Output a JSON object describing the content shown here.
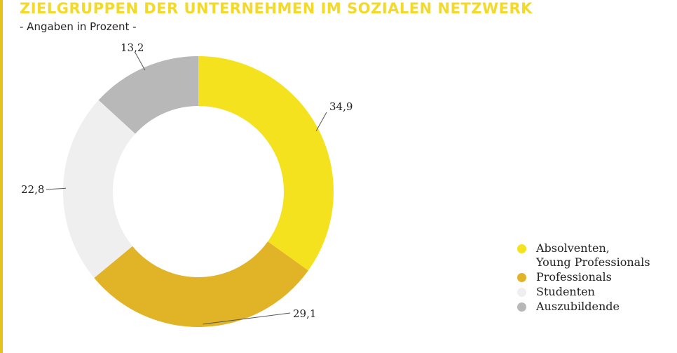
{
  "header": {
    "title": "ZIELGRUPPEN DER UNTERNEHMEN IM SOZIALEN NETZWERK",
    "subtitle": "- Angaben in Prozent -"
  },
  "colors": {
    "accent_bar": "#e8c21c",
    "title": "#f2d92a"
  },
  "chart_data": {
    "type": "pie",
    "variant": "donut",
    "title": "ZIELGRUPPEN DER UNTERNEHMEN IM SOZIALEN NETZWERK",
    "subtitle": "- Angaben in Prozent -",
    "slices": [
      {
        "label": "Absolventen,\nYoung Professionals",
        "value": 34.9,
        "display": "34,9",
        "color": "#f5e21f"
      },
      {
        "label": "Professionals",
        "value": 29.1,
        "display": "29,1",
        "color": "#e1b327"
      },
      {
        "label": "Studenten",
        "value": 22.8,
        "display": "22,8",
        "color": "#efefef"
      },
      {
        "label": "Auszubildende",
        "value": 13.2,
        "display": "13,2",
        "color": "#b8b8b8"
      }
    ],
    "legend_placement": "bottom-right"
  }
}
